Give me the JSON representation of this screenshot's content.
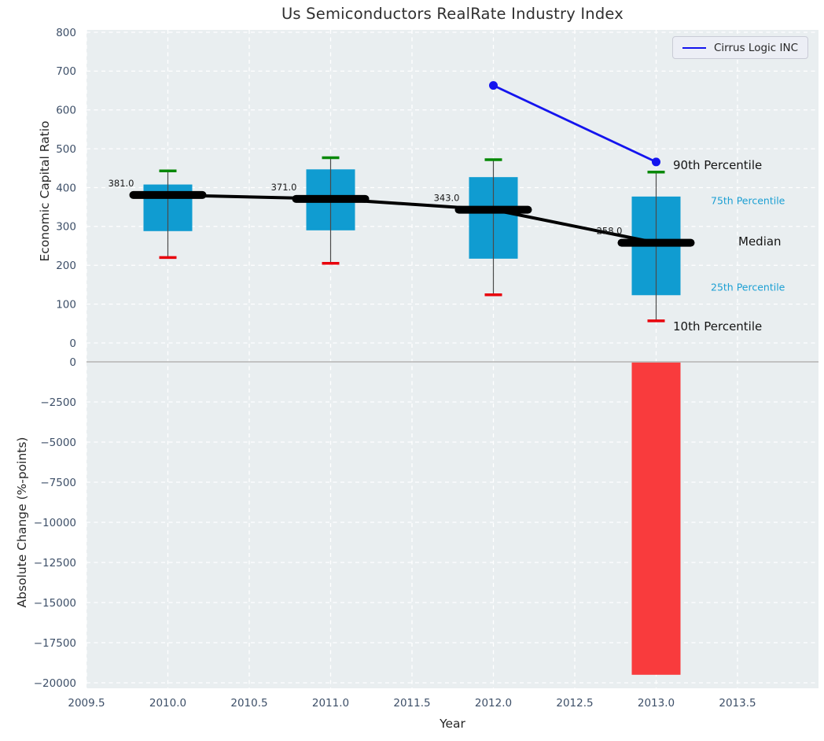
{
  "title": "Us Semiconductors RealRate Industry Index",
  "legend": {
    "label": "Cirrus Logic INC"
  },
  "axes": {
    "xlabel": "Year",
    "top_ylabel": "Economic Capital Ratio",
    "bottom_ylabel": "Absolute Change (%-points)"
  },
  "colors": {
    "plot_bg": "#e9eef0",
    "grid": "#ffffff",
    "box_fill": "#109cd1",
    "bar_red": "#f93b3d",
    "line_blue": "#1414ee",
    "cap_green": "#068806",
    "cap_red": "#e8000b",
    "median_black": "#000000",
    "whisker": "#4a4a4a",
    "zero_line": "#bcbcbc",
    "tick_label": "#3d4f68",
    "annotation_major": "#141414",
    "annotation_minor": "#1b9fd3"
  },
  "chart_data": {
    "type": "boxplot-line-bar-combo",
    "x_ticks": {
      "values": [
        2009.5,
        2010.0,
        2010.5,
        2011.0,
        2011.5,
        2012.0,
        2012.5,
        2013.0,
        2013.5
      ],
      "labels": [
        "2009.5",
        "2010.0",
        "2010.5",
        "2011.0",
        "2011.5",
        "2012.0",
        "2012.5",
        "2013.0",
        "2013.5"
      ]
    },
    "xlim": [
      2009.5,
      2014.0
    ],
    "top": {
      "ylim": [
        0,
        800
      ],
      "yticks": {
        "values": [
          800,
          700,
          600,
          500,
          400,
          300,
          200,
          100,
          0
        ],
        "labels": [
          "800",
          "700",
          "600",
          "500",
          "400",
          "300",
          "200",
          "100",
          "0"
        ]
      },
      "boxplots": [
        {
          "year": 2010,
          "p10": 220,
          "q1": 288,
          "median": 381,
          "q3": 408,
          "p90": 443,
          "median_label": "381.0"
        },
        {
          "year": 2011,
          "p10": 205,
          "q1": 290,
          "median": 371,
          "q3": 447,
          "p90": 477,
          "median_label": "371.0"
        },
        {
          "year": 2012,
          "p10": 124,
          "q1": 217,
          "median": 343,
          "q3": 427,
          "p90": 472,
          "median_label": "343.0"
        },
        {
          "year": 2013,
          "p10": 57,
          "q1": 123,
          "median": 258,
          "q3": 377,
          "p90": 440,
          "median_label": "258.0"
        }
      ],
      "series": [
        {
          "name": "Cirrus Logic INC",
          "x": [
            2012,
            2013
          ],
          "y": [
            663,
            466
          ]
        }
      ]
    },
    "bottom": {
      "ylim": [
        -20000,
        0
      ],
      "yticks": {
        "values": [
          0,
          -2500,
          -5000,
          -7500,
          -10000,
          -12500,
          -15000,
          -17500,
          -20000
        ],
        "labels": [
          "0",
          "−2500",
          "−5000",
          "−7500",
          "−10000",
          "−12500",
          "−15000",
          "−17500",
          "−20000"
        ]
      },
      "bars": [
        {
          "year": 2013,
          "value": -19500
        }
      ]
    },
    "annotations": [
      {
        "text": "90th Percentile",
        "anchor": "p90",
        "style": "major"
      },
      {
        "text": "75th Percentile",
        "anchor": "q3",
        "style": "minor"
      },
      {
        "text": "Median",
        "anchor": "median",
        "style": "major"
      },
      {
        "text": "25th Percentile",
        "anchor": "q1",
        "style": "minor"
      },
      {
        "text": "10th Percentile",
        "anchor": "p10",
        "style": "major"
      }
    ]
  }
}
